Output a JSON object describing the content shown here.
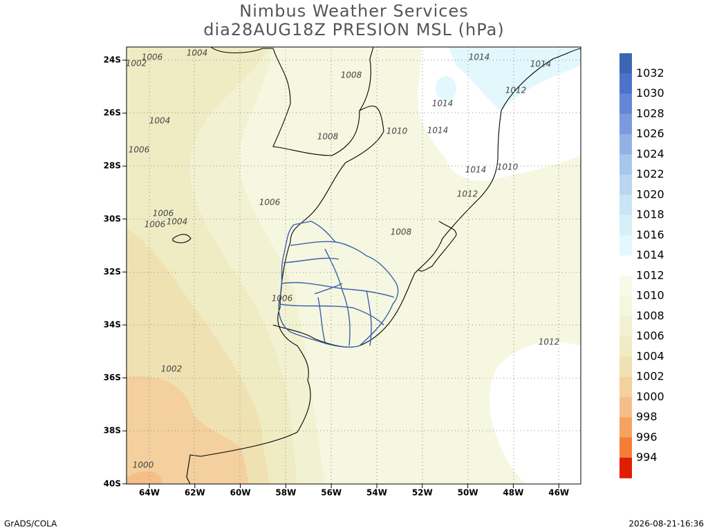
{
  "map": {
    "title": "Nimbus Weather Services",
    "subtitle": "dia28AUG18Z PRESION MSL (hPa)",
    "lat_labels": [
      "24S",
      "26S",
      "28S",
      "30S",
      "32S",
      "34S",
      "36S",
      "38S",
      "40S"
    ],
    "lon_labels": [
      "64W",
      "62W",
      "60W",
      "58W",
      "56W",
      "54W",
      "52W",
      "50W",
      "48W",
      "46W"
    ],
    "contour_labels": [
      "1004",
      "1006",
      "1002",
      "1008",
      "1014",
      "1014",
      "1012",
      "1014",
      "1004",
      "1008",
      "1010",
      "1014",
      "1006",
      "1014",
      "1010",
      "1012",
      "1006",
      "1006",
      "1006",
      "1004",
      "1008",
      "1006",
      "1012",
      "1002",
      "1000"
    ],
    "colorbar": {
      "labels": [
        "1032",
        "1030",
        "1028",
        "1026",
        "1024",
        "1022",
        "1020",
        "1018",
        "1016",
        "1014",
        "1012",
        "1010",
        "1008",
        "1006",
        "1004",
        "1002",
        "1000",
        "998",
        "996",
        "994"
      ],
      "colors": [
        "#3a66b3",
        "#4d72cc",
        "#6585d6",
        "#7c9bdd",
        "#92b2e4",
        "#a7c6eb",
        "#b9d7f0",
        "#c9e5f5",
        "#d6f0f9",
        "#e2f8fc",
        "#ffffff",
        "#f8f9e9",
        "#f4f6de",
        "#f2f2d2",
        "#efecc4",
        "#f0e1b2",
        "#f3d09d",
        "#f5be88",
        "#f7a25e",
        "#f47d37",
        "#e01d00"
      ]
    },
    "footer_left": "GrADS/COLA",
    "footer_right": "2026-08-21-16:36"
  }
}
